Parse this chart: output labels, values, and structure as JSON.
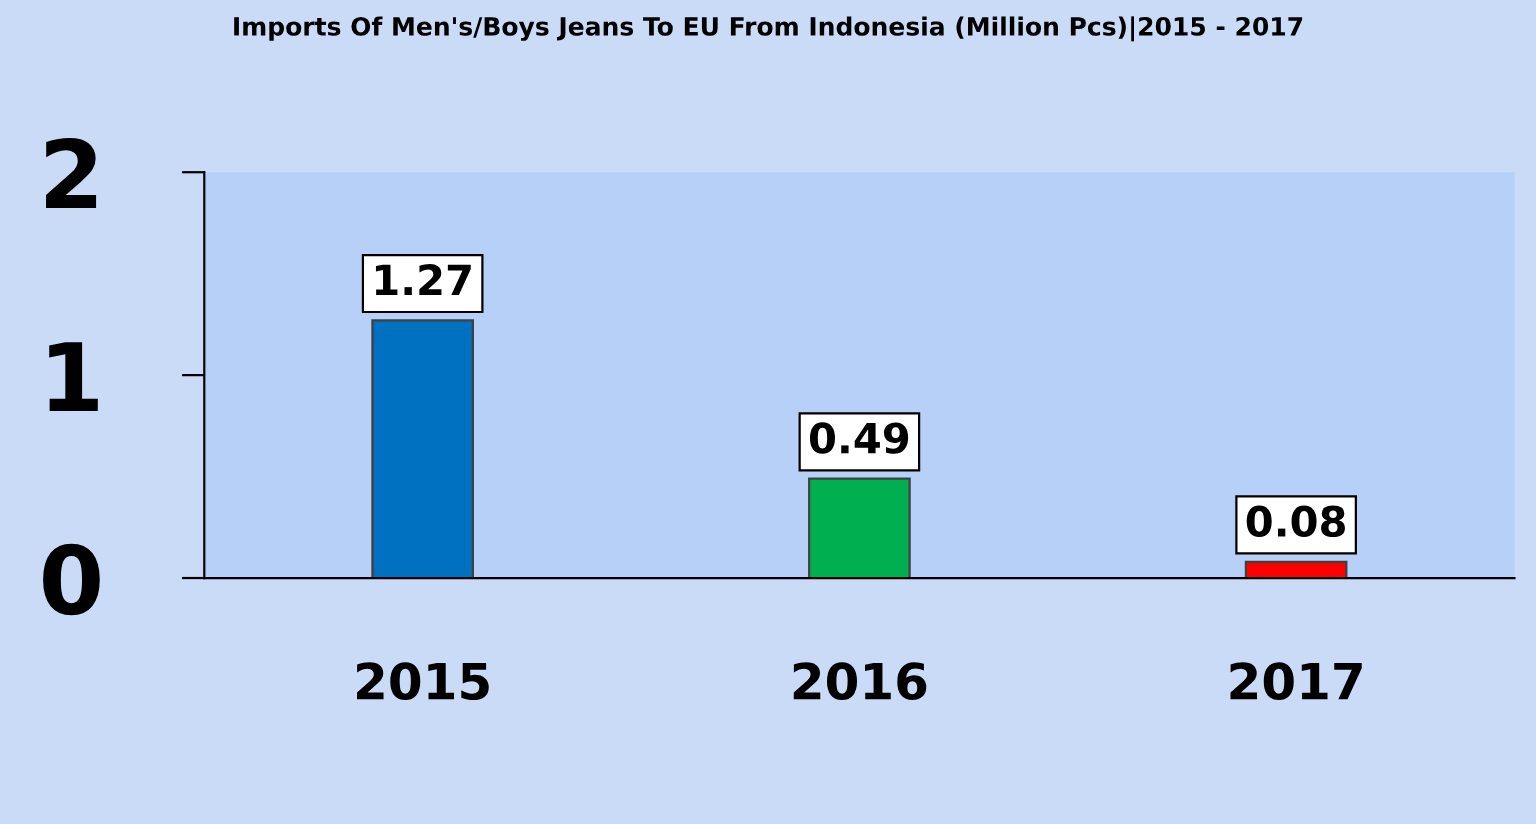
{
  "chart_data": {
    "type": "bar",
    "title": "Imports Of Men's/Boys Jeans To EU From Indonesia (Million Pcs)|2015 - 2017",
    "categories": [
      "2015",
      "2016",
      "2017"
    ],
    "values": [
      1.27,
      0.49,
      0.08
    ],
    "colors": [
      "#0070c0",
      "#00b050",
      "#ff0000"
    ],
    "ylim": [
      0,
      2
    ],
    "yticks": [
      0,
      1,
      2
    ],
    "grid": false,
    "data_labels": true
  }
}
